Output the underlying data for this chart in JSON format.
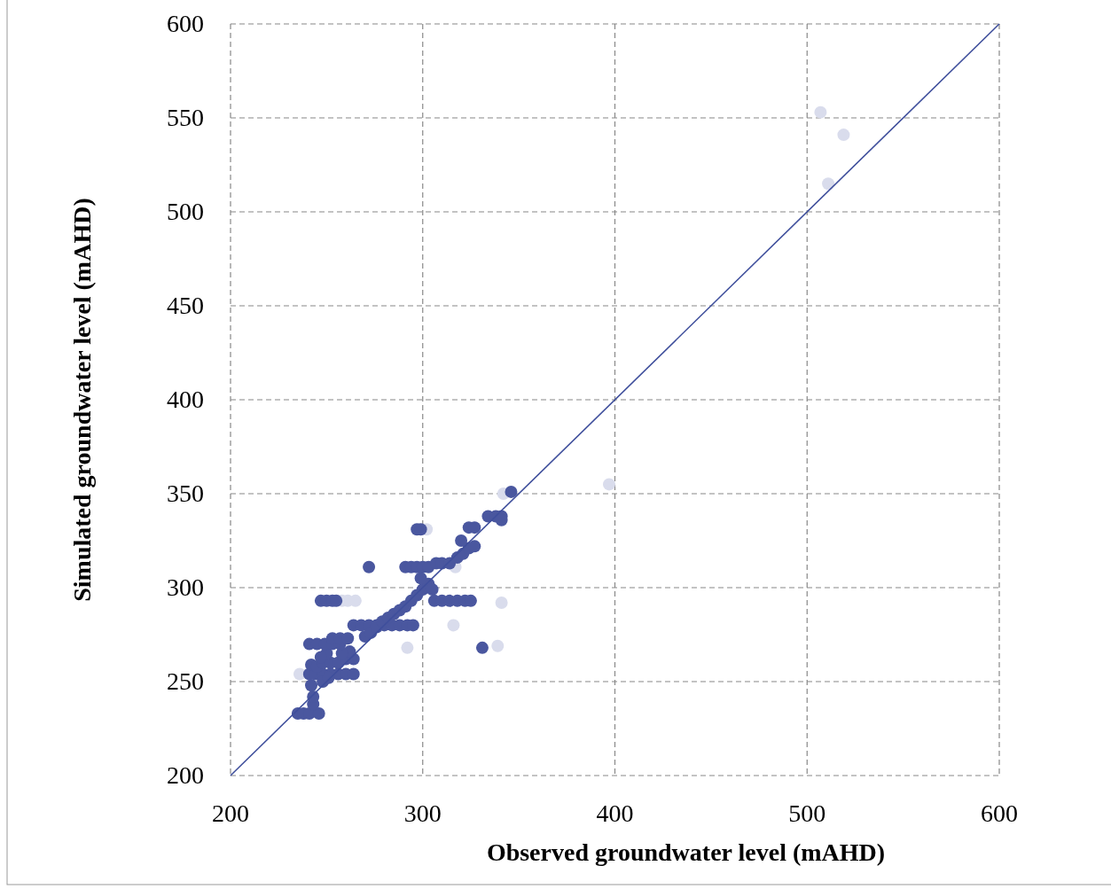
{
  "chart_data": {
    "type": "scatter",
    "xlabel": "Observed groundwater level (mAHD)",
    "ylabel": "Simulated groundwater level (mAHD)",
    "xlim": [
      200,
      600
    ],
    "ylim": [
      200,
      600
    ],
    "xticks": [
      200,
      300,
      400,
      500,
      600
    ],
    "yticks": [
      200,
      250,
      300,
      350,
      400,
      450,
      500,
      550,
      600
    ],
    "grid": true,
    "marker": "circle",
    "series": [
      {
        "color": "#d9dcec",
        "x": [
          507,
          519,
          511,
          397,
          339,
          341,
          316,
          292,
          302,
          317,
          265,
          261,
          258,
          236,
          342
        ],
        "values": [
          553,
          541,
          515,
          355,
          269,
          292,
          280,
          268,
          331,
          311,
          293,
          293,
          293,
          254,
          350
        ]
      },
      {
        "color": "#4a579f",
        "x": [
          235,
          238,
          241,
          246,
          243,
          243,
          242,
          241,
          244,
          248,
          252,
          256,
          260,
          264,
          242,
          245,
          248,
          252,
          256,
          260,
          264,
          262,
          258,
          250,
          247,
          241,
          245,
          249,
          253,
          257,
          253,
          257,
          261,
          248,
          251,
          247,
          250,
          253,
          255,
          264,
          268,
          272,
          276,
          280,
          284,
          288,
          292,
          295,
          270,
          273,
          276,
          279,
          282,
          285,
          288,
          291,
          294,
          297,
          300,
          303,
          272,
          291,
          294,
          297,
          300,
          303,
          307,
          310,
          314,
          318,
          321,
          324,
          327,
          297,
          299,
          299,
          305,
          306,
          310,
          314,
          318,
          322,
          325,
          320,
          324,
          327,
          331,
          334,
          338,
          341,
          341,
          346
        ],
        "values": [
          233,
          233,
          233,
          233,
          238,
          242,
          248,
          254,
          254,
          254,
          254,
          254,
          254,
          254,
          259,
          258,
          260,
          260,
          260,
          262,
          262,
          266,
          265,
          265,
          263,
          270,
          270,
          270,
          270,
          270,
          273,
          273,
          273,
          250,
          252,
          293,
          293,
          293,
          293,
          280,
          280,
          280,
          280,
          280,
          280,
          280,
          280,
          280,
          274,
          276,
          279,
          282,
          284,
          286,
          288,
          290,
          293,
          296,
          299,
          302,
          311,
          311,
          311,
          311,
          311,
          311,
          313,
          313,
          313,
          316,
          318,
          321,
          322,
          331,
          331,
          305,
          299,
          293,
          293,
          293,
          293,
          293,
          293,
          325,
          332,
          332,
          268,
          338,
          338,
          338,
          336,
          351
        ]
      },
      {
        "type": "line",
        "marker": "none",
        "color": "#3f4f9c",
        "x": [
          200,
          600
        ],
        "values": [
          200,
          600
        ]
      }
    ]
  }
}
